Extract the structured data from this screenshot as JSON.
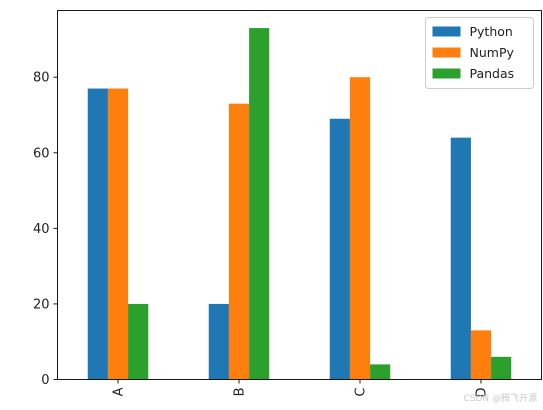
{
  "chart_data": {
    "type": "bar",
    "categories": [
      "A",
      "B",
      "C",
      "D"
    ],
    "series": [
      {
        "name": "Python",
        "values": [
          77,
          20,
          69,
          64
        ],
        "color": "#1f77b4"
      },
      {
        "name": "NumPy",
        "values": [
          77,
          73,
          80,
          13
        ],
        "color": "#ff7f0e"
      },
      {
        "name": "Pandas",
        "values": [
          20,
          93,
          4,
          6
        ],
        "color": "#2ca02c"
      }
    ],
    "title": "",
    "xlabel": "",
    "ylabel": "",
    "ylim": [
      0,
      97.65
    ],
    "yticks": [
      0,
      20,
      40,
      60,
      80
    ],
    "xtick_rotation": "vertical",
    "legend_position": "top-right",
    "grid": false
  },
  "watermark": "CSDN @腾飞开源"
}
